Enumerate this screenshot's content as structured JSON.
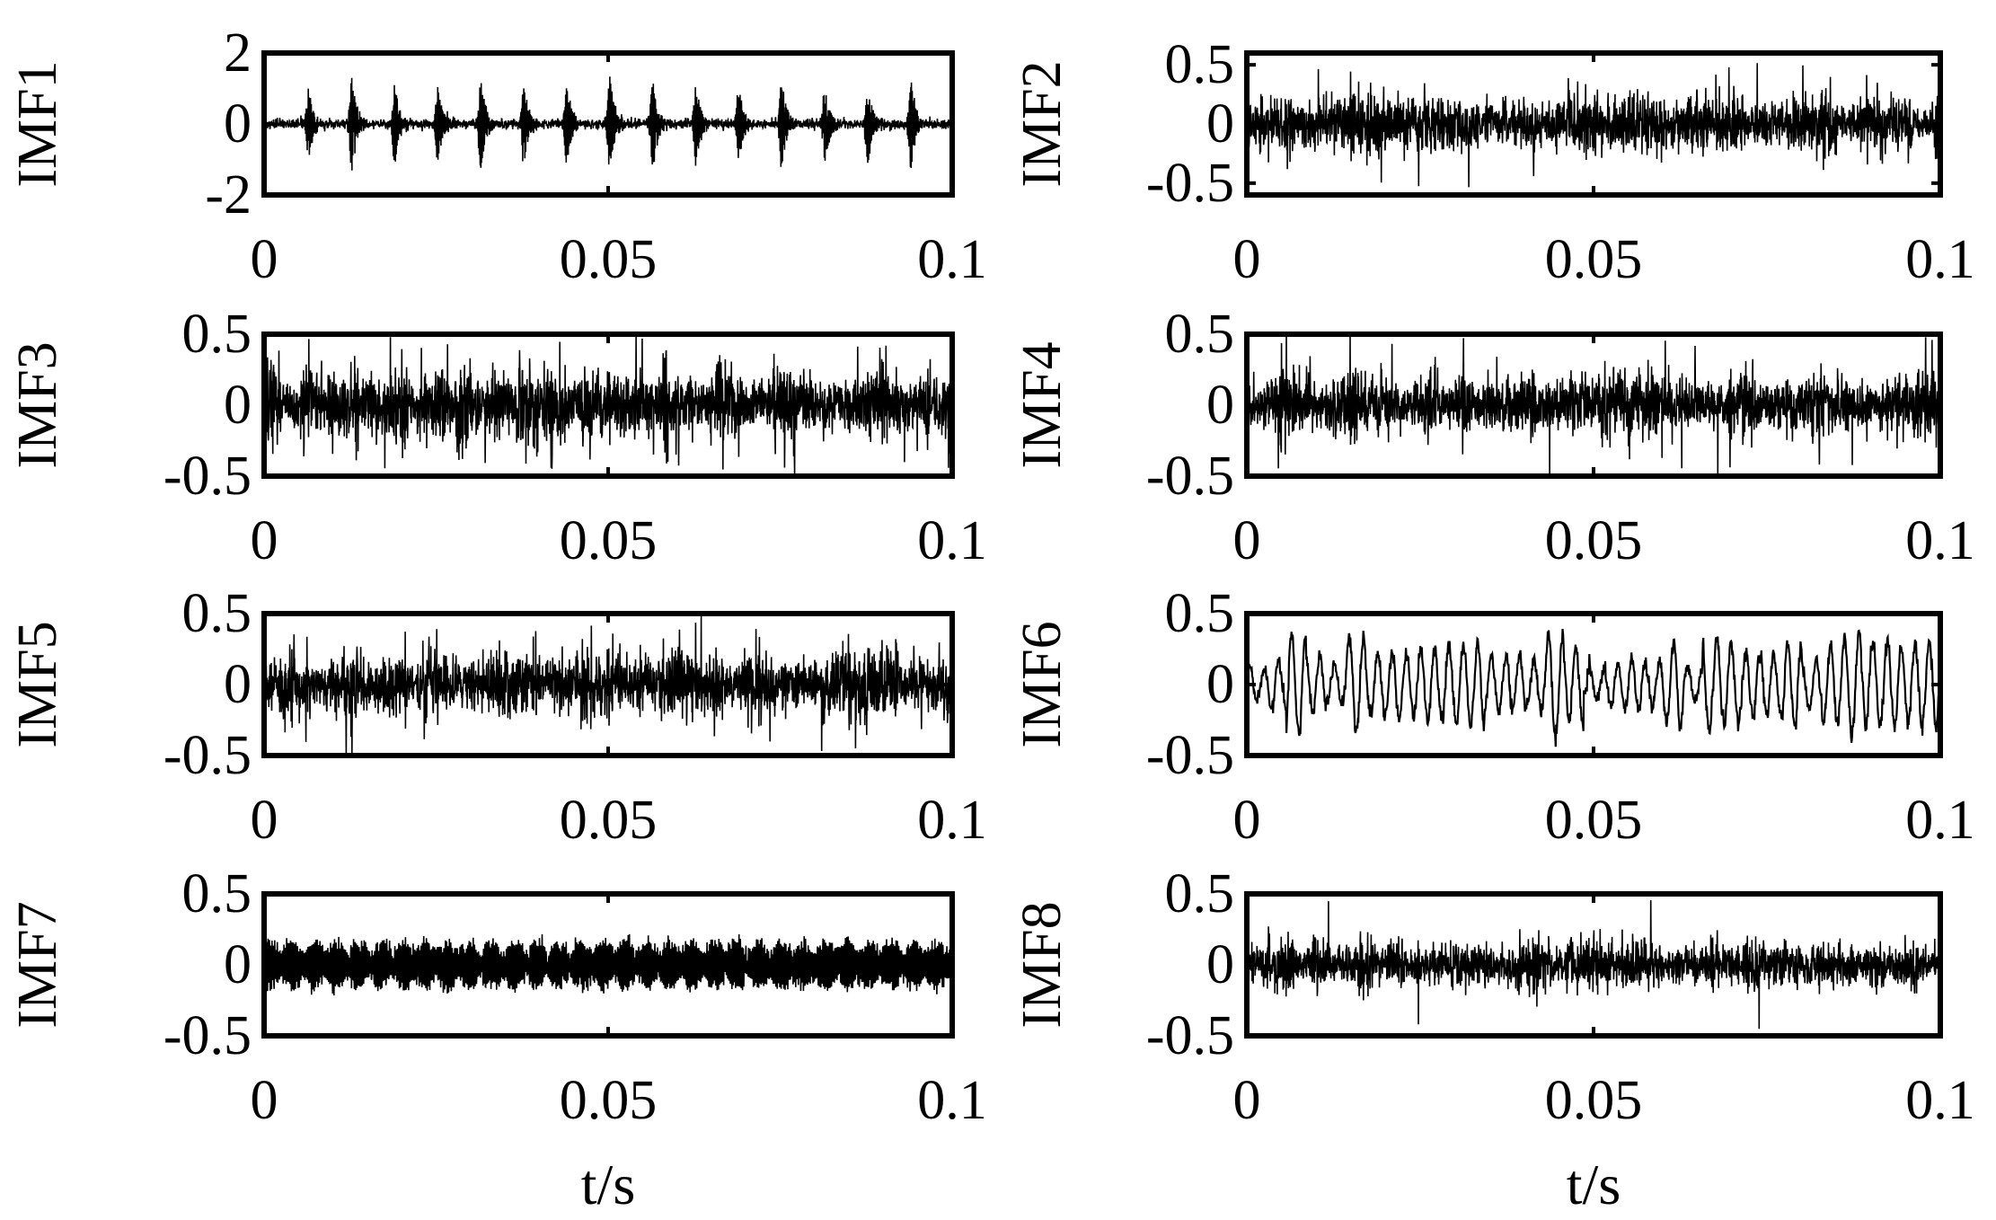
{
  "figure": {
    "type": "line",
    "background": "#ffffff",
    "line_color": "#000000"
  },
  "chart_data": [
    {
      "type": "line",
      "series": [
        {
          "name": "IMF1"
        }
      ],
      "ylabel": "IMF1",
      "xlabel": "",
      "xlim": [
        0,
        0.1
      ],
      "ylim": [
        -2,
        2
      ],
      "xticks": [
        0,
        0.05,
        0.1
      ],
      "xtick_labels": [
        "0",
        "0.05",
        "0.1"
      ],
      "yticks": [
        2,
        0,
        -2
      ],
      "ytick_labels": [
        "2",
        "0",
        "-2"
      ],
      "signal": {
        "kind": "impulsive",
        "baseline_amplitude": 0.15,
        "impulse_amplitude": 1.4,
        "impulse_period_s": 0.00625,
        "first_impulse_s": 0.0065
      }
    },
    {
      "type": "line",
      "series": [
        {
          "name": "IMF2"
        }
      ],
      "ylabel": "IMF2",
      "xlabel": "",
      "xlim": [
        0,
        0.1
      ],
      "ylim": [
        -0.6,
        0.6
      ],
      "xticks": [
        0,
        0.05,
        0.1
      ],
      "xtick_labels": [
        "0",
        "0.05",
        "0.1"
      ],
      "yticks": [
        0.5,
        0,
        -0.5
      ],
      "ytick_labels": [
        "0.5",
        "0",
        "-0.5"
      ],
      "signal": {
        "kind": "noise",
        "amplitude": 0.2,
        "peak": 0.55
      }
    },
    {
      "type": "line",
      "series": [
        {
          "name": "IMF3"
        }
      ],
      "ylabel": "IMF3",
      "xlabel": "",
      "xlim": [
        0,
        0.1
      ],
      "ylim": [
        -0.5,
        0.5
      ],
      "xticks": [
        0,
        0.05,
        0.1
      ],
      "xtick_labels": [
        "0",
        "0.05",
        "0.1"
      ],
      "yticks": [
        0.5,
        0,
        -0.5
      ],
      "ytick_labels": [
        "0.5",
        "0",
        "-0.5"
      ],
      "signal": {
        "kind": "noise",
        "amplitude": 0.22,
        "peak": 0.5
      }
    },
    {
      "type": "line",
      "series": [
        {
          "name": "IMF4"
        }
      ],
      "ylabel": "IMF4",
      "xlabel": "",
      "xlim": [
        0,
        0.1
      ],
      "ylim": [
        -0.5,
        0.5
      ],
      "xticks": [
        0,
        0.05,
        0.1
      ],
      "xtick_labels": [
        "0",
        "0.05",
        "0.1"
      ],
      "yticks": [
        0.5,
        0,
        -0.5
      ],
      "ytick_labels": [
        "0.5",
        "0",
        "-0.5"
      ],
      "signal": {
        "kind": "noise",
        "amplitude": 0.17,
        "peak": 0.5
      }
    },
    {
      "type": "line",
      "series": [
        {
          "name": "IMF5"
        }
      ],
      "ylabel": "IMF5",
      "xlabel": "",
      "xlim": [
        0,
        0.1
      ],
      "ylim": [
        -0.5,
        0.5
      ],
      "xticks": [
        0,
        0.05,
        0.1
      ],
      "xtick_labels": [
        "0",
        "0.05",
        "0.1"
      ],
      "yticks": [
        0.5,
        0,
        -0.5
      ],
      "ytick_labels": [
        "0.5",
        "0",
        "-0.5"
      ],
      "signal": {
        "kind": "noise",
        "amplitude": 0.18,
        "peak": 0.5
      }
    },
    {
      "type": "line",
      "series": [
        {
          "name": "IMF6"
        }
      ],
      "ylabel": "IMF6",
      "xlabel": "",
      "xlim": [
        0,
        0.1
      ],
      "ylim": [
        -0.5,
        0.5
      ],
      "xticks": [
        0,
        0.05,
        0.1
      ],
      "xtick_labels": [
        "0",
        "0.05",
        "0.1"
      ],
      "yticks": [
        0.5,
        0,
        -0.5
      ],
      "ytick_labels": [
        "0.5",
        "0",
        "-0.5"
      ],
      "signal": {
        "kind": "oscillation",
        "amplitude": 0.2,
        "peak": 0.5
      }
    },
    {
      "type": "line",
      "series": [
        {
          "name": "IMF7"
        }
      ],
      "ylabel": "IMF7",
      "xlabel": "t/s",
      "xlim": [
        0,
        0.1
      ],
      "ylim": [
        -0.5,
        0.5
      ],
      "xticks": [
        0,
        0.05,
        0.1
      ],
      "xtick_labels": [
        "0",
        "0.05",
        "0.1"
      ],
      "yticks": [
        0.5,
        0,
        -0.5
      ],
      "ytick_labels": [
        "0.5",
        "0",
        "-0.5"
      ],
      "signal": {
        "kind": "bursts",
        "amplitude": 0.12,
        "peak": 0.35
      }
    },
    {
      "type": "line",
      "series": [
        {
          "name": "IMF8"
        }
      ],
      "ylabel": "IMF8",
      "xlabel": "t/s",
      "xlim": [
        0,
        0.1
      ],
      "ylim": [
        -0.5,
        0.5
      ],
      "xticks": [
        0,
        0.05,
        0.1
      ],
      "xtick_labels": [
        "0",
        "0.05",
        "0.1"
      ],
      "yticks": [
        0.5,
        0,
        -0.5
      ],
      "ytick_labels": [
        "0.5",
        "0",
        "-0.5"
      ],
      "signal": {
        "kind": "noise",
        "amplitude": 0.14,
        "peak": 0.5
      }
    }
  ]
}
